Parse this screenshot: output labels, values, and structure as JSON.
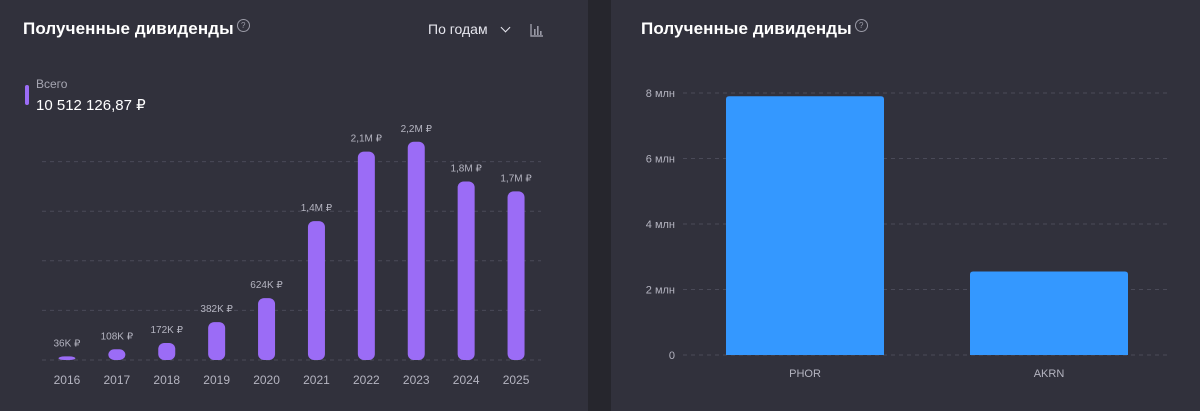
{
  "left_panel": {
    "title": "Полученные дивиденды",
    "help_icon": "help-circle-icon",
    "period_select": {
      "value": "По годам",
      "icon": "chevron-down-icon"
    },
    "chart_type_icon": "bar-chart-icon",
    "total": {
      "label": "Всего",
      "value": "10 512 126,87 ₽",
      "color": "#9b6cf6"
    }
  },
  "right_panel": {
    "title": "Полученные дивиденды",
    "help_icon": "help-circle-icon"
  },
  "chart_data": [
    {
      "type": "bar",
      "categories": [
        "2016",
        "2017",
        "2018",
        "2019",
        "2020",
        "2021",
        "2022",
        "2023",
        "2024",
        "2025"
      ],
      "values": [
        36000,
        108000,
        172000,
        382000,
        624000,
        1400000,
        2100000,
        2200000,
        1800000,
        1700000
      ],
      "data_labels": [
        "36K ₽",
        "108K ₽",
        "172K ₽",
        "382K ₽",
        "624K ₽",
        "1,4M ₽",
        "2,1M ₽",
        "2,2M ₽",
        "1,8M ₽",
        "1,7M ₽"
      ],
      "ylim": [
        0,
        2500000
      ],
      "grid": true,
      "bar_color": "#9b6cf6"
    },
    {
      "type": "bar",
      "categories": [
        "PHOR",
        "AKRN"
      ],
      "values": [
        7900000,
        2550000
      ],
      "ylim": [
        0,
        8000000
      ],
      "yticks": [
        0,
        2000000,
        4000000,
        6000000,
        8000000
      ],
      "ytick_labels": [
        "0",
        "2 млн",
        "4 млн",
        "6 млн",
        "8 млн"
      ],
      "grid": true,
      "bar_color": "#3498ff"
    }
  ]
}
